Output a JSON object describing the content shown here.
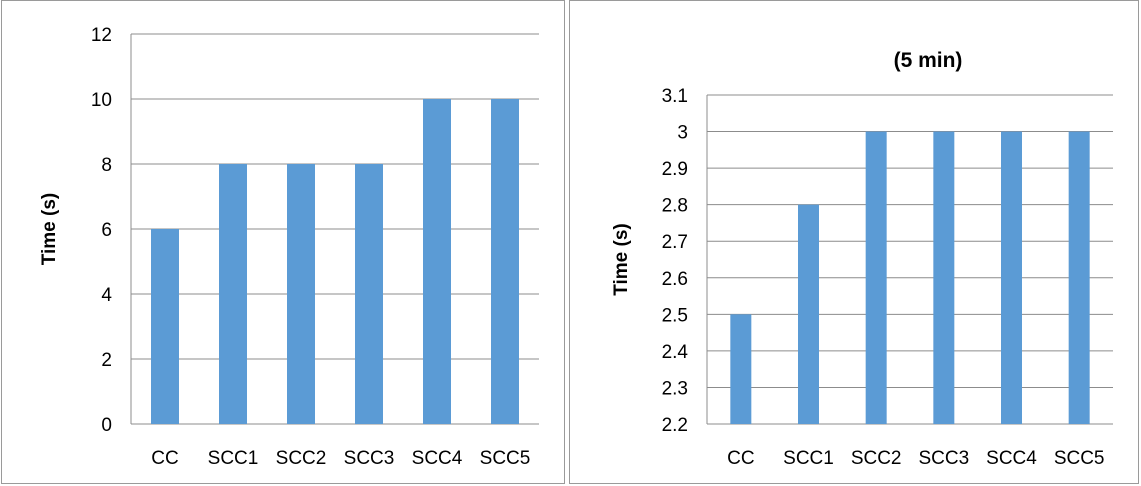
{
  "chart_data": [
    {
      "type": "bar",
      "title": "",
      "xlabel": "",
      "ylabel": "Time (s)",
      "categories": [
        "CC",
        "SCC1",
        "SCC2",
        "SCC3",
        "SCC4",
        "SCC5"
      ],
      "values": [
        6,
        8,
        8,
        8,
        10,
        10
      ],
      "ylim": [
        0,
        12
      ],
      "yticks": [
        "0",
        "2",
        "4",
        "6",
        "8",
        "10",
        "12"
      ],
      "grid": true,
      "bar_color": "#5b9bd5"
    },
    {
      "type": "bar",
      "title": "(5 min)",
      "xlabel": "",
      "ylabel": "Time (s)",
      "categories": [
        "CC",
        "SCC1",
        "SCC2",
        "SCC3",
        "SCC4",
        "SCC5"
      ],
      "values": [
        2.5,
        2.8,
        3,
        3,
        3,
        3
      ],
      "ylim": [
        2.2,
        3.1
      ],
      "yticks": [
        "2.2",
        "2.3",
        "2.4",
        "2.5",
        "2.6",
        "2.7",
        "2.8",
        "2.9",
        "3",
        "3.1"
      ],
      "grid": true,
      "bar_color": "#5b9bd5"
    }
  ]
}
